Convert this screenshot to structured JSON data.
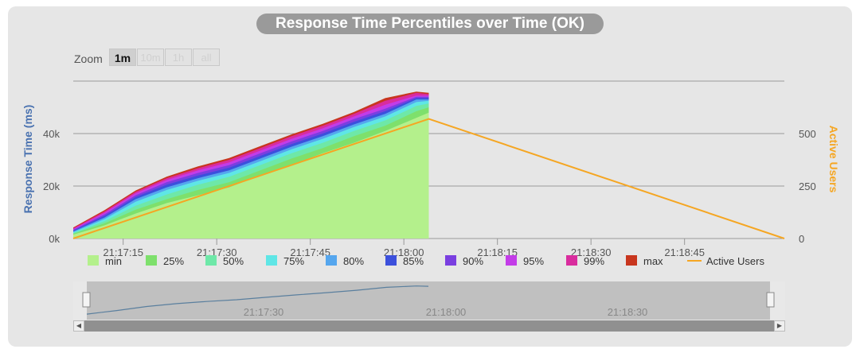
{
  "title": "Response Time Percentiles over Time (OK)",
  "zoom": {
    "label": "Zoom",
    "buttons": [
      "1m",
      "10m",
      "1h",
      "all"
    ],
    "selected": "1m"
  },
  "navigator": {
    "ticks": [
      "21:17:30",
      "21:18:00",
      "21:18:30"
    ]
  },
  "chart_data": {
    "type": "area",
    "title": "Response Time Percentiles over Time (OK)",
    "xlabel": "",
    "ylabel": "Response Time (ms)",
    "y2label": "Active Users",
    "x_ticks": [
      "21:17:15",
      "21:17:30",
      "21:17:45",
      "21:18:00",
      "21:18:15",
      "21:18:30",
      "21:18:45"
    ],
    "y_ticks": [
      "0k",
      "20k",
      "40k"
    ],
    "y2_ticks": [
      "0",
      "250",
      "500"
    ],
    "ylim": [
      0,
      60000
    ],
    "y2lim": [
      0,
      750
    ],
    "x_start": "21:17:07",
    "x_end": "21:19:01",
    "grid": true,
    "legend_position": "bottom",
    "x": [
      "21:17:07",
      "21:17:12",
      "21:17:17",
      "21:17:22",
      "21:17:27",
      "21:17:32",
      "21:17:37",
      "21:17:42",
      "21:17:47",
      "21:17:52",
      "21:17:57",
      "21:18:02",
      "21:18:04"
    ],
    "series": [
      {
        "name": "min",
        "color": "#b4f08c",
        "values": [
          1500,
          5000,
          9500,
          13500,
          16500,
          19500,
          24000,
          28000,
          32500,
          36500,
          41000,
          46000,
          48000
        ]
      },
      {
        "name": "25%",
        "color": "#7ee06c",
        "values": [
          1800,
          5800,
          11000,
          15000,
          18500,
          21500,
          26000,
          30500,
          34500,
          39000,
          43000,
          48500,
          50000
        ]
      },
      {
        "name": "50%",
        "color": "#6ee8a8",
        "values": [
          2100,
          6600,
          12500,
          16800,
          20500,
          23500,
          28000,
          32500,
          36500,
          41000,
          45000,
          50500,
          51500
        ]
      },
      {
        "name": "75%",
        "color": "#5fe6e6",
        "values": [
          2400,
          7400,
          14000,
          18500,
          22000,
          25000,
          29500,
          34000,
          38000,
          42500,
          46500,
          52000,
          52500
        ]
      },
      {
        "name": "80%",
        "color": "#55a6ee",
        "values": [
          2700,
          8000,
          15000,
          19500,
          23000,
          26000,
          30500,
          35000,
          39000,
          43500,
          47500,
          53000,
          53000
        ]
      },
      {
        "name": "85%",
        "color": "#3c50dc",
        "values": [
          3000,
          8600,
          15800,
          20500,
          24000,
          27000,
          31500,
          36000,
          40000,
          44500,
          48500,
          53500,
          53500
        ]
      },
      {
        "name": "90%",
        "color": "#7a3fe0",
        "values": [
          3300,
          9200,
          16500,
          21500,
          25000,
          28000,
          32500,
          37000,
          41000,
          45500,
          49500,
          54000,
          54000
        ]
      },
      {
        "name": "95%",
        "color": "#c33ce8",
        "values": [
          3600,
          9800,
          17200,
          22300,
          26000,
          29000,
          33500,
          38000,
          42000,
          46500,
          51000,
          54500,
          54500
        ]
      },
      {
        "name": "99%",
        "color": "#d92c9e",
        "values": [
          3900,
          10300,
          17800,
          23000,
          26800,
          30000,
          34500,
          39000,
          43000,
          47500,
          52500,
          55500,
          55000
        ]
      },
      {
        "name": "max",
        "color": "#c8361e",
        "values": [
          4200,
          10800,
          18300,
          23600,
          27500,
          30700,
          35200,
          39700,
          43700,
          48200,
          53500,
          56000,
          55500
        ]
      }
    ],
    "active_users": {
      "name": "Active Users",
      "color": "#f5a623",
      "x": [
        "21:17:07",
        "21:18:04",
        "21:19:01"
      ],
      "values": [
        0,
        570,
        0
      ]
    }
  }
}
